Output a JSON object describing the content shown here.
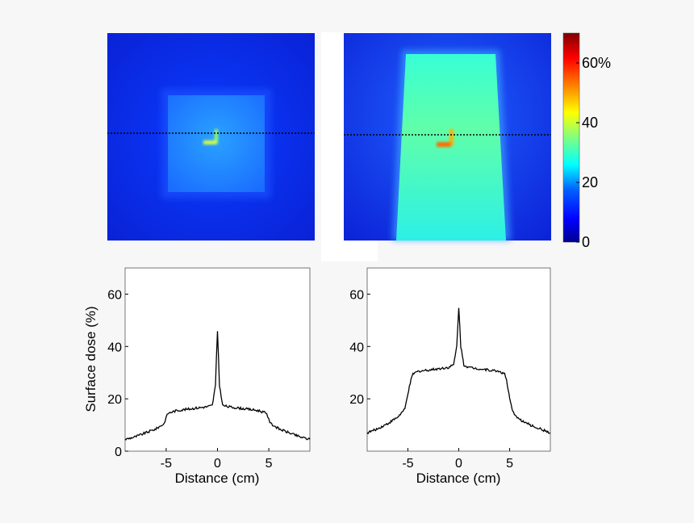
{
  "colors": {
    "page_bg": "#f7f7f7",
    "panel_bg": "#ffffff",
    "line": "#000000",
    "colormap": [
      "#00008f",
      "#0000ff",
      "#00a0ff",
      "#00ffff",
      "#80ff80",
      "#ffff00",
      "#ff8000",
      "#ff0000",
      "#800000"
    ]
  },
  "chart_data": [
    {
      "type": "heatmap",
      "panel": "top-left",
      "description_field": "small square field",
      "dotted_line": true
    },
    {
      "type": "heatmap",
      "panel": "top-right",
      "description_field": "elongated field",
      "dotted_line": true,
      "colorbar": {
        "range": [
          0,
          70
        ],
        "ticks": [
          {
            "value": 0,
            "label": "0"
          },
          {
            "value": 20,
            "label": "20"
          },
          {
            "value": 40,
            "label": "40"
          },
          {
            "value": 60,
            "label": "60%"
          }
        ]
      }
    },
    {
      "type": "line",
      "panel": "bottom-left",
      "xlabel": "Distance (cm)",
      "ylabel": "Surface dose (%)",
      "xlim": [
        -9,
        9
      ],
      "ylim": [
        0,
        70
      ],
      "xticks": [
        {
          "value": -5,
          "label": "-5"
        },
        {
          "value": 0,
          "label": "0"
        },
        {
          "value": 5,
          "label": "5"
        }
      ],
      "yticks": [
        {
          "value": 0,
          "label": "0"
        },
        {
          "value": 20,
          "label": "20"
        },
        {
          "value": 40,
          "label": "40"
        },
        {
          "value": 60,
          "label": "60"
        }
      ],
      "x": [
        -9,
        -8,
        -7,
        -6,
        -5.2,
        -5,
        -4.8,
        -4,
        -3,
        -2,
        -1,
        -0.5,
        -0.2,
        0,
        0.2,
        0.5,
        1,
        2,
        3,
        4,
        4.8,
        5,
        5.2,
        6,
        7,
        8,
        9
      ],
      "y": [
        4.5,
        5.5,
        7,
        8.5,
        10.5,
        13,
        14.5,
        15.5,
        16,
        16.5,
        17,
        17.5,
        25,
        46,
        25,
        17.5,
        17,
        16.5,
        16,
        15.5,
        14.5,
        12,
        10.5,
        8.5,
        7,
        5.5,
        4.5
      ]
    },
    {
      "type": "line",
      "panel": "bottom-right",
      "xlabel": "Distance (cm)",
      "ylabel": "",
      "xlim": [
        -9,
        9
      ],
      "ylim": [
        0,
        70
      ],
      "xticks": [
        {
          "value": -5,
          "label": "-5"
        },
        {
          "value": 0,
          "label": "0"
        },
        {
          "value": 5,
          "label": "5"
        }
      ],
      "yticks": [
        {
          "value": 20,
          "label": "20"
        },
        {
          "value": 40,
          "label": "40"
        },
        {
          "value": 60,
          "label": "60"
        }
      ],
      "x": [
        -9,
        -8,
        -7,
        -6,
        -5.3,
        -5,
        -4.7,
        -4.5,
        -4,
        -3,
        -2,
        -1,
        -0.5,
        -0.2,
        0,
        0.2,
        0.5,
        1,
        2,
        3,
        4,
        4.5,
        4.7,
        5,
        5.3,
        6,
        7,
        8,
        9
      ],
      "y": [
        7,
        8.5,
        10.5,
        13,
        16,
        22,
        27,
        29.5,
        30.5,
        31,
        31.5,
        32,
        33,
        40,
        55,
        40,
        33,
        32,
        31.5,
        31,
        30.5,
        29.5,
        27,
        20,
        15,
        12,
        10,
        8.5,
        7
      ]
    }
  ]
}
